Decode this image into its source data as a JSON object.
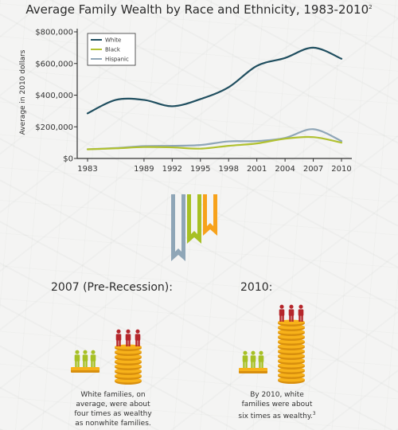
{
  "title": "Average Family Wealth by Race and Ethnicity, 1983-2010",
  "title_footnote": "2",
  "colors": {
    "white": "#1f4e5f",
    "black": "#b1c130",
    "hispanic": "#8fa6b7",
    "accent_red": "#b5262b",
    "coin": "#f7b21a",
    "person_green": "#a7c025",
    "ribbon_orange": "#f7a21b"
  },
  "chart_data": {
    "type": "line",
    "x": [
      1983,
      1986,
      1989,
      1992,
      1995,
      1998,
      2001,
      2004,
      2007,
      2010
    ],
    "x_tick_labels": [
      "1983",
      "1989",
      "1992",
      "1995",
      "1998",
      "2001",
      "2004",
      "2007",
      "2010"
    ],
    "ylabel": "Average in 2010 dollars",
    "y_tick_labels": [
      "$0",
      "$200,000",
      "$400,000",
      "$600,000",
      "$800,000"
    ],
    "ylim": [
      0,
      800000
    ],
    "grid": false,
    "legend_position": "top-left",
    "series": [
      {
        "name": "White",
        "color_key": "white",
        "values": [
          285000,
          370000,
          370000,
          330000,
          375000,
          450000,
          585000,
          635000,
          700000,
          630000
        ]
      },
      {
        "name": "Black",
        "color_key": "black",
        "values": [
          58000,
          64000,
          72000,
          70000,
          62000,
          80000,
          95000,
          125000,
          135000,
          100000
        ]
      },
      {
        "name": "Hispanic",
        "color_key": "hispanic",
        "values": [
          58000,
          66000,
          78000,
          80000,
          85000,
          108000,
          110000,
          130000,
          185000,
          110000
        ]
      }
    ]
  },
  "scenes": {
    "left": {
      "title": "2007 (Pre-Recession):",
      "caption_lines": [
        "White families, on",
        "average, were about",
        "four times as wealthy",
        "as nonwhite families."
      ]
    },
    "right": {
      "title": "2010:",
      "caption_lines": [
        "By 2010, white",
        "families were about",
        "six times as wealthy."
      ],
      "caption_footnote": "3"
    }
  },
  "icons": {
    "ribbon": "bookmark-ribbons-icon",
    "coin": "coin-stack-icon",
    "person": "person-icon"
  }
}
